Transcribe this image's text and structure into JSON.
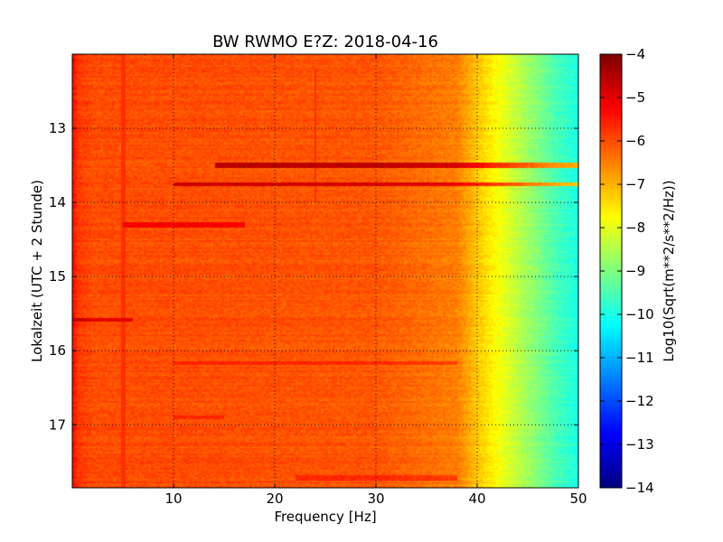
{
  "chart_data": {
    "type": "heatmap",
    "title": "BW RWMO E?Z: 2018-04-16",
    "xlabel": "Frequency [Hz]",
    "ylabel": "Lokalzeit (UTC + 2 Stunde)",
    "colorbar_label": "Log10(Sqrt(m**2/s**2/Hz))",
    "colormap": "jet",
    "xlim": [
      0,
      50
    ],
    "ylim": [
      17.85,
      12.0
    ],
    "x_ticks": [
      10,
      20,
      30,
      40,
      50
    ],
    "x_tick_labels": [
      "10",
      "20",
      "30",
      "40",
      "50"
    ],
    "y_ticks": [
      13,
      14,
      15,
      16,
      17
    ],
    "y_tick_labels": [
      "13",
      "14",
      "15",
      "16",
      "17"
    ],
    "color_range": [
      -14,
      -4
    ],
    "colorbar_ticks": [
      -4,
      -5,
      -6,
      -7,
      -8,
      -9,
      -10,
      -11,
      -12,
      -13,
      -14
    ],
    "colorbar_tick_labels": [
      "−4",
      "−5",
      "−6",
      "−7",
      "−8",
      "−9",
      "−10",
      "−11",
      "−12",
      "−13",
      "−14"
    ],
    "grid": true,
    "background_level_by_frequency": {
      "frequency_hz": [
        0,
        0.5,
        2,
        10,
        30,
        38,
        40,
        42,
        44,
        46,
        48,
        50
      ],
      "log10_amplitude": [
        -5.3,
        -5.8,
        -6.0,
        -6.0,
        -6.1,
        -6.5,
        -7.2,
        -7.8,
        -8.4,
        -9.0,
        -9.6,
        -10.0
      ]
    },
    "features": [
      {
        "kind": "horizontal_band",
        "time_h": 13.5,
        "freq_range": [
          14,
          50
        ],
        "level": -4.6
      },
      {
        "kind": "horizontal_band",
        "time_h": 13.75,
        "freq_range": [
          10,
          50
        ],
        "level": -4.8
      },
      {
        "kind": "horizontal_band",
        "time_h": 14.3,
        "freq_range": [
          5,
          17
        ],
        "level": -5.2
      },
      {
        "kind": "horizontal_band",
        "time_h": 15.58,
        "freq_range": [
          0,
          6
        ],
        "level": -5.0
      },
      {
        "kind": "horizontal_band",
        "time_h": 16.17,
        "freq_range": [
          10,
          38
        ],
        "level": -5.6
      },
      {
        "kind": "horizontal_band",
        "time_h": 16.9,
        "freq_range": [
          10,
          15
        ],
        "level": -5.6
      },
      {
        "kind": "horizontal_band",
        "time_h": 17.72,
        "freq_range": [
          22,
          38
        ],
        "level": -5.6
      },
      {
        "kind": "vertical_line",
        "freq_hz": 5,
        "time_range": [
          12.0,
          17.85
        ],
        "level": -5.7
      },
      {
        "kind": "vertical_line",
        "freq_hz": 24,
        "time_range": [
          12.2,
          14.0
        ],
        "level": -5.7
      }
    ]
  }
}
